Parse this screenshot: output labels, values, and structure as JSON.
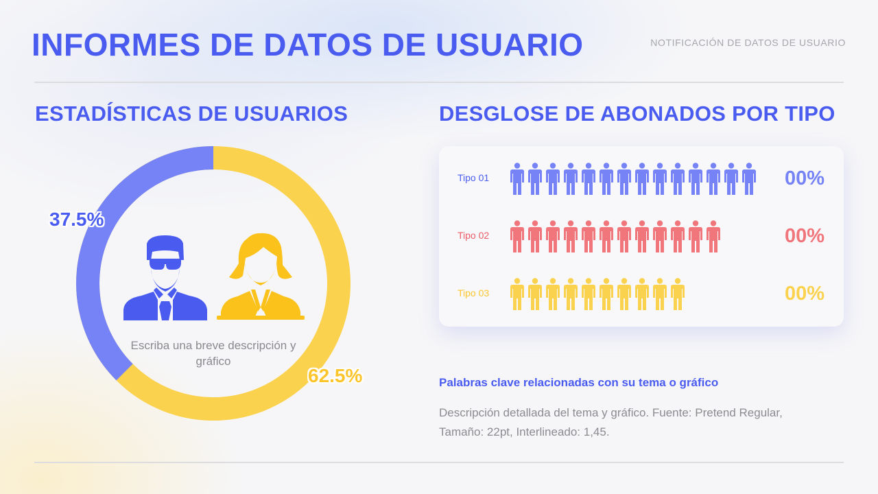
{
  "header": {
    "title": "INFORMES DE DATOS DE USUARIO",
    "subtitle": "NOTIFICACIÓN DE DATOS DE USUARIO"
  },
  "left_section": {
    "heading": "ESTADÍSTICAS DE USUARIOS",
    "center_description": "Escriba una breve descripción y gráfico",
    "icons": [
      "man-with-sunglasses-icon",
      "woman-icon"
    ]
  },
  "right_section": {
    "heading": "DESGLOSE DE ABONADOS POR TIPO",
    "rows": [
      {
        "label": "Tipo 01",
        "count": 14,
        "value": "00%",
        "color": "#7583f7"
      },
      {
        "label": "Tipo 02",
        "count": 12,
        "value": "00%",
        "color": "#f0767c"
      },
      {
        "label": "Tipo 03",
        "count": 10,
        "value": "00%",
        "color": "#fbd24e"
      }
    ],
    "keywords_title": "Palabras clave relacionadas con su tema o gráfico",
    "keywords_description": "Descripción detallada del tema y gráfico. Fuente: Pretend Regular, Tamaño: 22pt, Interlineado: 1,45."
  },
  "colors": {
    "accent": "#4a5cf0",
    "blue_segment": "#7583f7",
    "yellow_segment": "#fbd24e",
    "blue_label": "#4a5cf0",
    "yellow_label": "#fbc52b",
    "man_icon": "#4a5cf0",
    "woman_icon": "#fbc21c"
  },
  "chart_data": [
    {
      "type": "pie",
      "subtype": "donut",
      "title": "ESTADÍSTICAS DE USUARIOS",
      "categories": [
        "Hombres",
        "Mujeres"
      ],
      "values": [
        37.5,
        62.5
      ],
      "labels": [
        "37.5%",
        "62.5%"
      ],
      "colors": [
        "#7583f7",
        "#fbd24e"
      ]
    },
    {
      "type": "bar",
      "subtype": "pictogram",
      "title": "DESGLOSE DE ABONADOS POR TIPO",
      "categories": [
        "Tipo 01",
        "Tipo 02",
        "Tipo 03"
      ],
      "values": [
        14,
        12,
        10
      ],
      "value_labels": [
        "00%",
        "00%",
        "00%"
      ],
      "colors": [
        "#7583f7",
        "#f0767c",
        "#fbd24e"
      ]
    }
  ]
}
